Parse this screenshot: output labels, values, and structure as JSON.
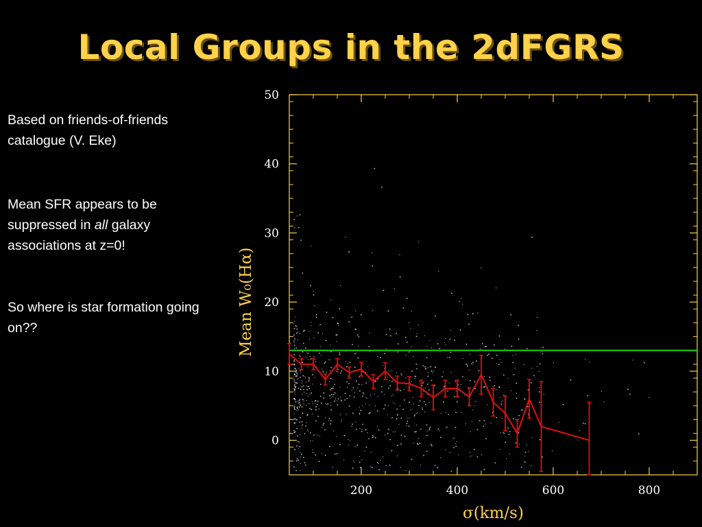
{
  "slide": {
    "title": "Local Groups in the 2dFGRS",
    "note1": "Based on friends-of-friends catalogue (V. Eke)",
    "note2_pre": "Mean SFR appears to be suppressed in ",
    "note2_em": "all",
    "note2_post": " galaxy associations at z=0!",
    "note3": "So where is star formation going on??"
  },
  "colors": {
    "background": "#000000",
    "title": "#ffd24a",
    "axis": "#ffd24a",
    "mean_curve": "#e01010",
    "reference_line": "#22cc22",
    "scatter": "#ffffff"
  },
  "chart_data": {
    "type": "line",
    "xlabel": "σ(km/s)",
    "ylabel": "Mean W₀(Hα)",
    "xlim": [
      50,
      900
    ],
    "ylim": [
      -5,
      50
    ],
    "x_ticks": [
      200,
      400,
      600,
      800
    ],
    "y_ticks": [
      0,
      10,
      20,
      30,
      40,
      50
    ],
    "grid": false,
    "reference_line": {
      "y": 13
    },
    "series": [
      {
        "x": [
          50,
          75,
          100,
          125,
          150,
          175,
          200,
          225,
          250,
          275,
          300,
          325,
          350,
          375,
          400,
          425,
          450,
          475,
          500,
          525,
          550,
          575,
          675
        ],
        "y": [
          12.5,
          11.0,
          11.0,
          8.8,
          11.0,
          9.8,
          10.3,
          8.5,
          10.0,
          8.3,
          8.2,
          7.5,
          6.2,
          7.5,
          7.5,
          6.3,
          9.5,
          5.5,
          3.9,
          1.0,
          6.0,
          2.0,
          0.0
        ],
        "error": [
          1.5,
          0.8,
          0.8,
          0.8,
          0.8,
          0.8,
          1.0,
          1.0,
          1.2,
          1.0,
          1.0,
          1.2,
          1.8,
          1.2,
          1.2,
          1.3,
          2.8,
          2.0,
          2.5,
          2.0,
          2.8,
          6.5,
          5.5
        ]
      }
    ],
    "scatter_note": "individual galaxies, approx. 900 points spread over sigma 60-900 km/s"
  }
}
